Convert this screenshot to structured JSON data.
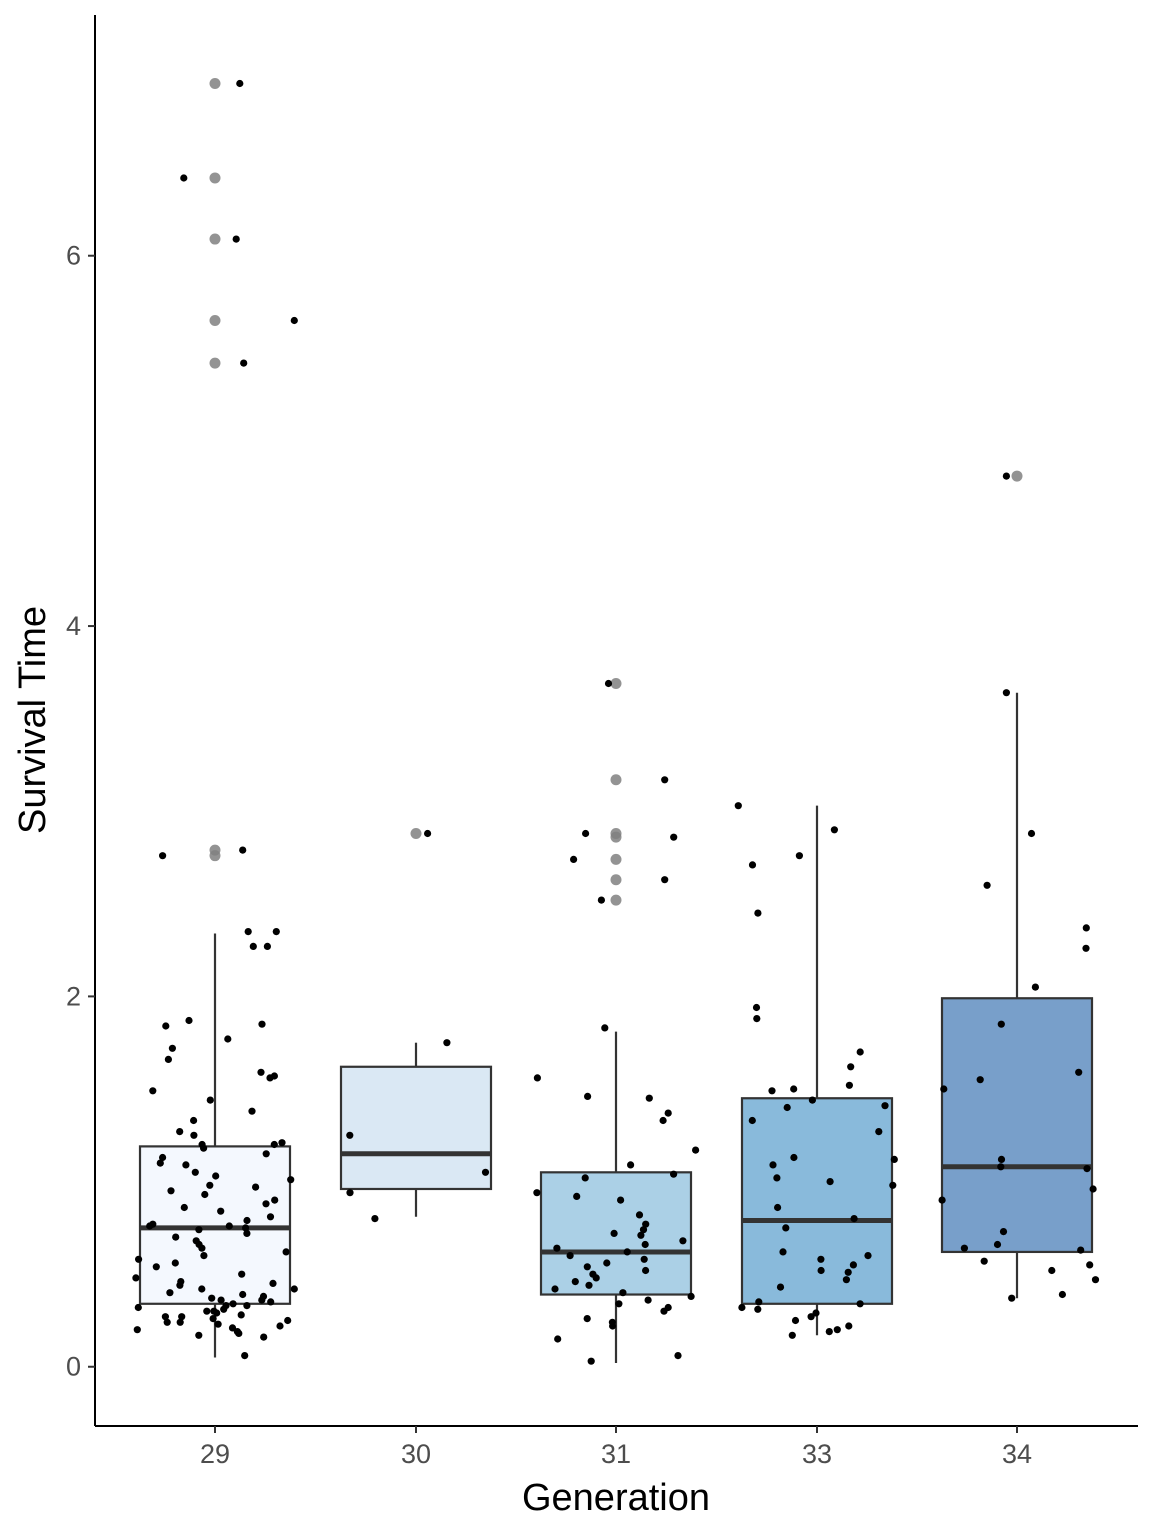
{
  "chart_data": {
    "type": "boxplot",
    "xlabel": "Generation",
    "ylabel": "Survival Time",
    "categories": [
      "29",
      "30",
      "31",
      "33",
      "34"
    ],
    "ylim": [
      -0.32,
      7.3
    ],
    "yticks": [
      0,
      2,
      4,
      6
    ],
    "grid": false,
    "legend": "none",
    "colors": {
      "fills": [
        "#f4f8fe",
        "#dae8f4",
        "#abd0e6",
        "#89badb",
        "#789fca"
      ],
      "box_stroke": "#333333",
      "median": "#333333",
      "jitter_point": "#000000",
      "outlier_point": "#808080",
      "axis": "#000000"
    },
    "boxes": [
      {
        "category": "29",
        "q1": 0.34,
        "median": 0.75,
        "q3": 1.19,
        "whisker_low": 0.05,
        "whisker_high": 2.34,
        "outliers": [
          6.93,
          6.42,
          6.09,
          5.65,
          5.42,
          2.79,
          2.76
        ]
      },
      {
        "category": "30",
        "q1": 0.96,
        "median": 1.15,
        "q3": 1.62,
        "whisker_low": 0.81,
        "whisker_high": 1.75,
        "outliers": [
          2.88
        ]
      },
      {
        "category": "31",
        "q1": 0.39,
        "median": 0.62,
        "q3": 1.05,
        "whisker_low": 0.02,
        "whisker_high": 1.81,
        "outliers": [
          3.69,
          3.17,
          2.88,
          2.86,
          2.74,
          2.63,
          2.52
        ]
      },
      {
        "category": "33",
        "q1": 0.34,
        "median": 0.79,
        "q3": 1.45,
        "whisker_low": 0.17,
        "whisker_high": 3.03,
        "outliers": []
      },
      {
        "category": "34",
        "q1": 0.62,
        "median": 1.08,
        "q3": 1.99,
        "whisker_low": 0.37,
        "whisker_high": 3.64,
        "outliers": [
          4.81
        ]
      }
    ],
    "jitter_points": [
      {
        "category": "29",
        "values": [
          6.93,
          6.42,
          6.09,
          5.65,
          5.42,
          2.79,
          2.76,
          2.35,
          2.35,
          2.27,
          2.27,
          1.87,
          1.85,
          1.84,
          1.77,
          1.72,
          1.66,
          1.59,
          1.57,
          1.56,
          1.49,
          1.44,
          1.38,
          1.33,
          1.27,
          1.25,
          1.21,
          1.2,
          1.2,
          1.18,
          1.15,
          1.13,
          1.1,
          1.09,
          1.05,
          1.03,
          1.01,
          0.98,
          0.97,
          0.95,
          0.93,
          0.9,
          0.88,
          0.86,
          0.84,
          0.81,
          0.79,
          0.77,
          0.76,
          0.76,
          0.75,
          0.74,
          0.72,
          0.7,
          0.68,
          0.66,
          0.64,
          0.62,
          0.6,
          0.58,
          0.56,
          0.54,
          0.5,
          0.48,
          0.46,
          0.44,
          0.42,
          0.4,
          0.38,
          0.37,
          0.36,
          0.35,
          0.34,
          0.33,
          0.32,
          0.31,
          0.3,
          0.29,
          0.28,
          0.27,
          0.26,
          0.25,
          0.24,
          0.23,
          0.22,
          0.21,
          0.2,
          0.19,
          0.18,
          0.17,
          0.16,
          0.06,
          0.24,
          0.36,
          0.42,
          0.3,
          0.27,
          0.33,
          0.39,
          0.45
        ]
      },
      {
        "category": "30",
        "values": [
          2.88,
          1.75,
          1.25,
          1.05,
          0.94,
          0.8
        ]
      },
      {
        "category": "31",
        "values": [
          3.69,
          3.17,
          2.88,
          2.86,
          2.74,
          2.63,
          2.52,
          1.83,
          1.56,
          1.46,
          1.45,
          1.37,
          1.33,
          1.17,
          1.09,
          1.04,
          1.02,
          0.94,
          0.92,
          0.9,
          0.82,
          0.77,
          0.74,
          0.72,
          0.71,
          0.68,
          0.66,
          0.64,
          0.62,
          0.6,
          0.58,
          0.56,
          0.54,
          0.52,
          0.5,
          0.48,
          0.46,
          0.44,
          0.42,
          0.4,
          0.38,
          0.36,
          0.34,
          0.32,
          0.3,
          0.26,
          0.24,
          0.22,
          0.15,
          0.06,
          0.03
        ]
      },
      {
        "category": "33",
        "values": [
          3.03,
          2.9,
          2.76,
          2.71,
          2.45,
          1.94,
          1.88,
          1.7,
          1.62,
          1.52,
          1.5,
          1.49,
          1.44,
          1.41,
          1.4,
          1.33,
          1.27,
          1.13,
          1.12,
          1.09,
          1.02,
          1.0,
          0.98,
          0.86,
          0.8,
          0.75,
          0.6,
          0.62,
          0.58,
          0.55,
          0.52,
          0.51,
          0.47,
          0.43,
          0.35,
          0.34,
          0.32,
          0.31,
          0.29,
          0.27,
          0.25,
          0.22,
          0.2,
          0.19,
          0.17
        ]
      },
      {
        "category": "34",
        "values": [
          4.81,
          3.64,
          2.88,
          2.6,
          2.37,
          2.26,
          2.05,
          1.85,
          1.59,
          1.55,
          1.5,
          1.12,
          1.08,
          1.07,
          0.96,
          0.9,
          0.73,
          0.66,
          0.64,
          0.63,
          0.57,
          0.55,
          0.52,
          0.47,
          0.39,
          0.37
        ]
      }
    ]
  }
}
